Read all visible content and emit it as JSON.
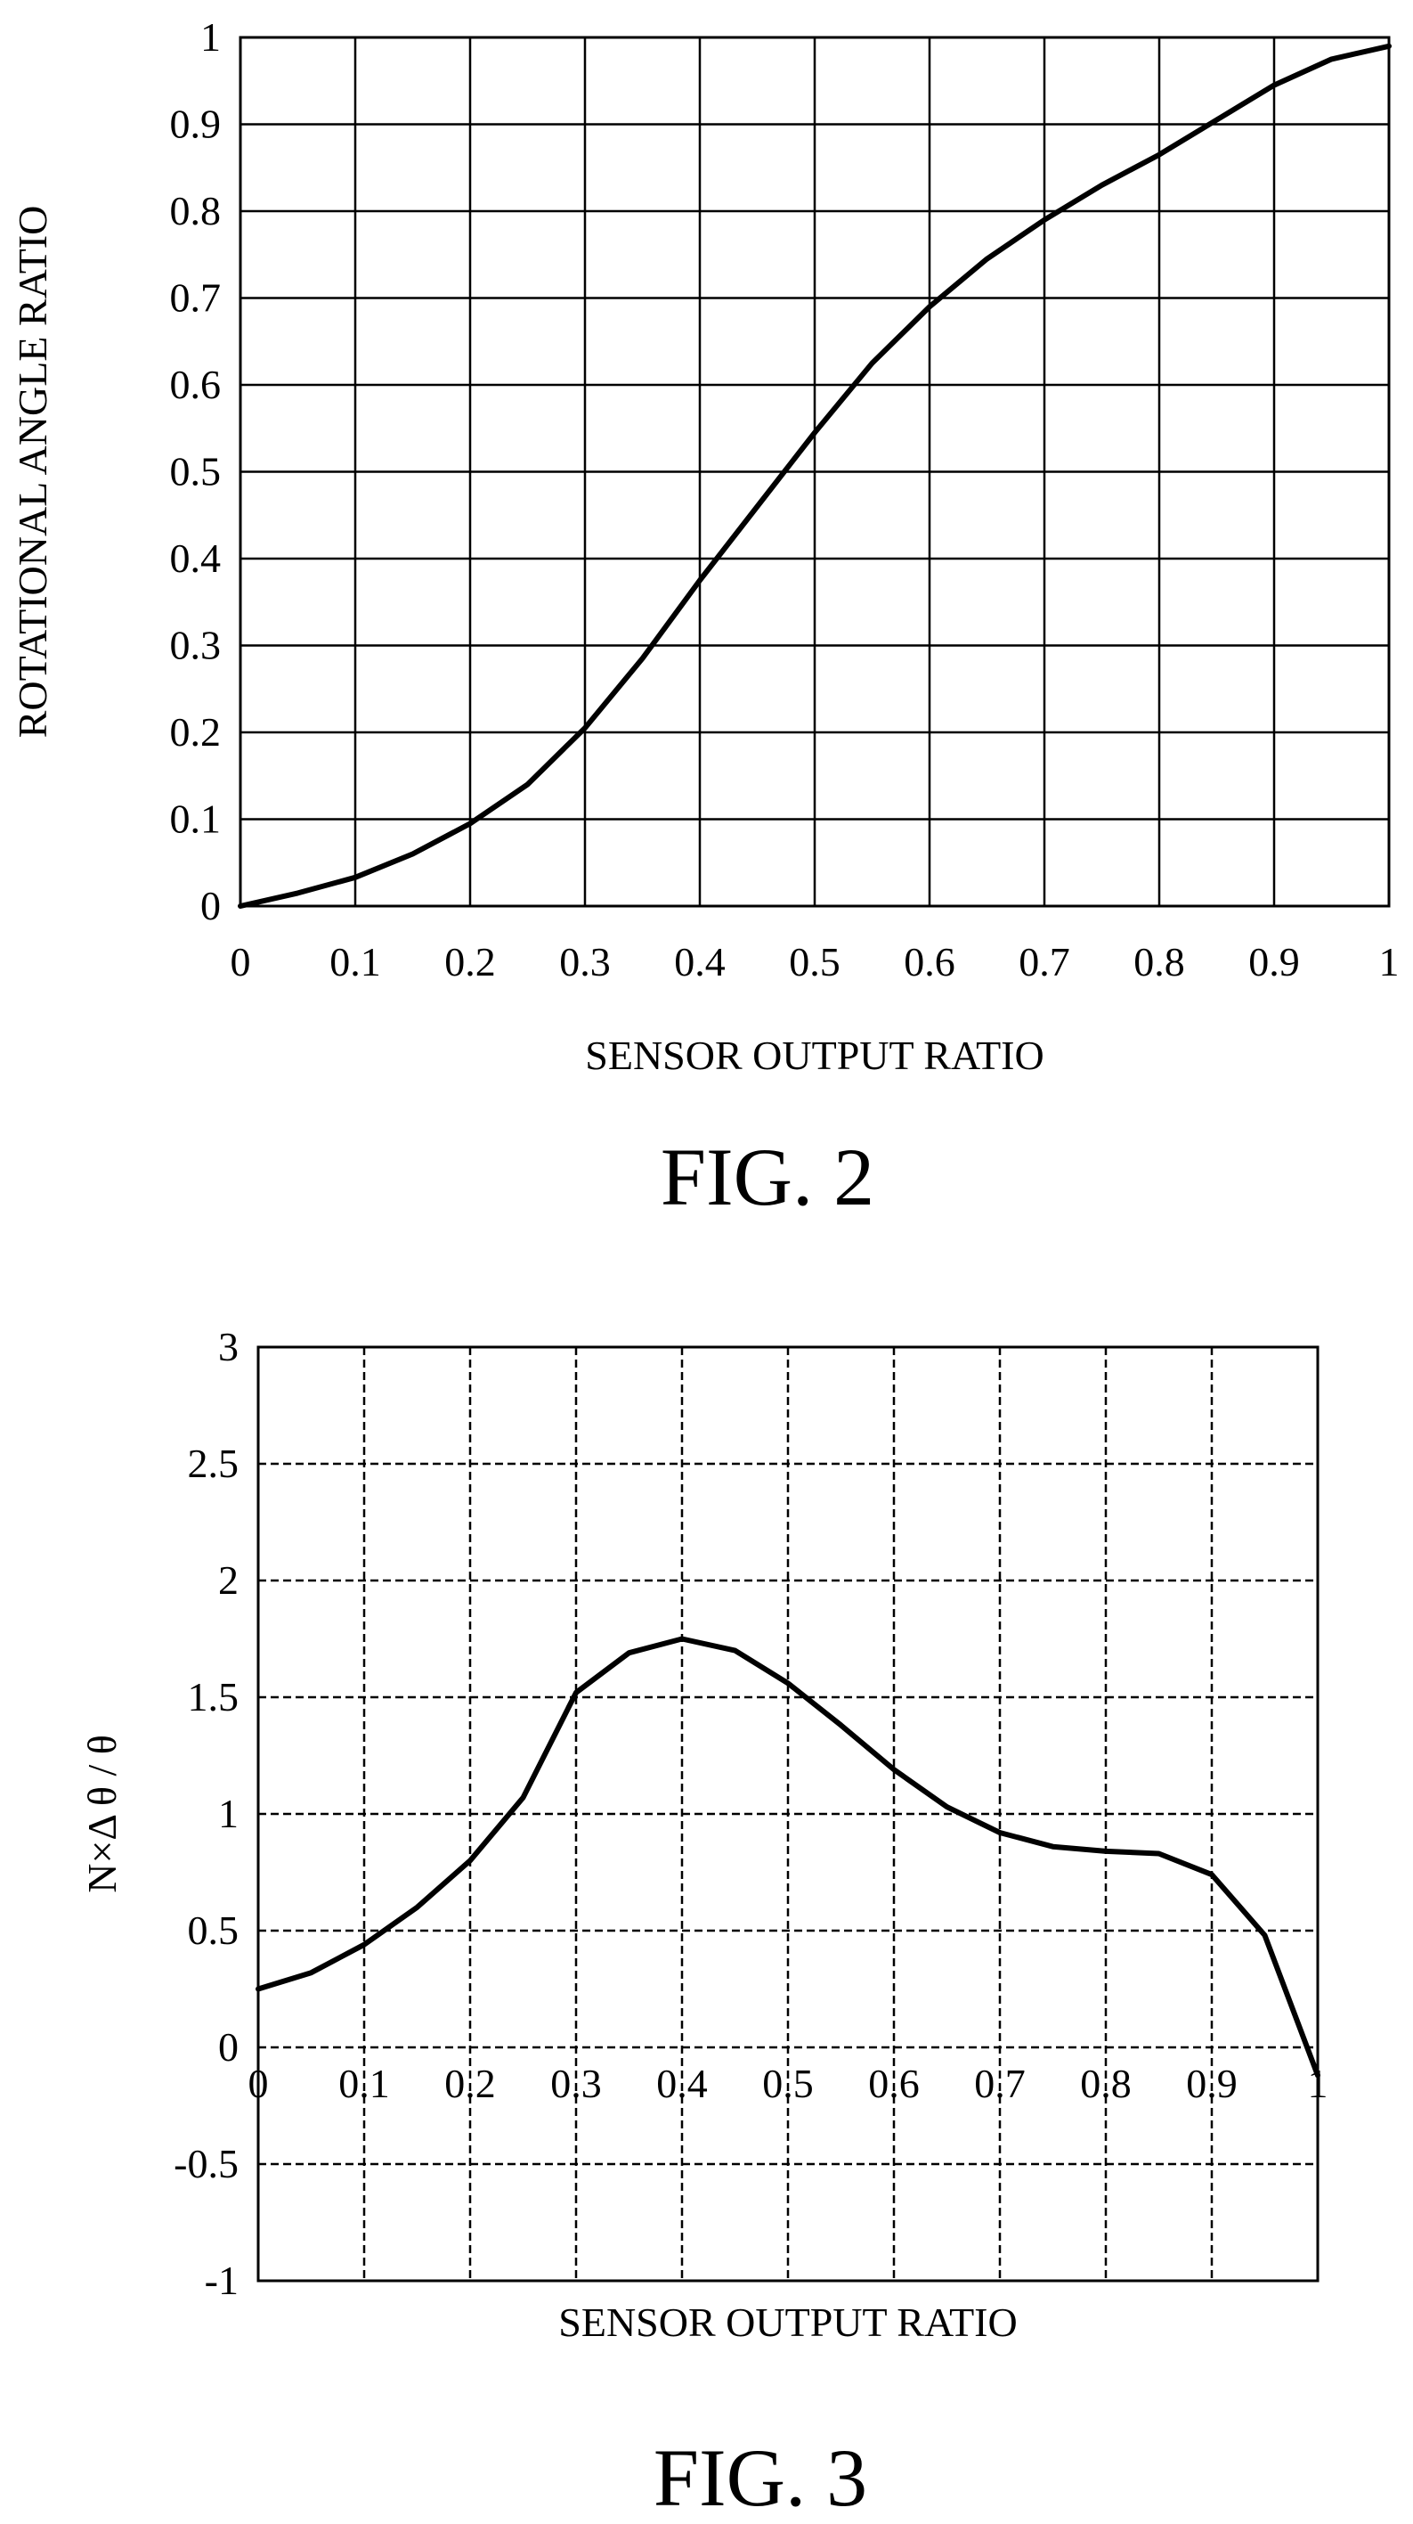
{
  "chart_data": [
    {
      "type": "line",
      "figure_label": "FIG. 2",
      "xlabel": "SENSOR OUTPUT RATIO",
      "ylabel": "ROTATIONAL ANGLE RATIO",
      "xlim": [
        0,
        1
      ],
      "ylim": [
        0,
        1
      ],
      "x_ticks": [
        "0",
        "0.1",
        "0.2",
        "0.3",
        "0.4",
        "0.5",
        "0.6",
        "0.7",
        "0.8",
        "0.9",
        "1"
      ],
      "y_ticks": [
        "0",
        "0.1",
        "0.2",
        "0.3",
        "0.4",
        "0.5",
        "0.6",
        "0.7",
        "0.8",
        "0.9",
        "1"
      ],
      "grid": "solid",
      "legend": "none",
      "series": [
        {
          "x": [
            0,
            0.05,
            0.1,
            0.15,
            0.2,
            0.25,
            0.3,
            0.35,
            0.4,
            0.45,
            0.5,
            0.55,
            0.6,
            0.65,
            0.7,
            0.75,
            0.8,
            0.85,
            0.9,
            0.95,
            1
          ],
          "y": [
            0,
            0.015,
            0.033,
            0.06,
            0.095,
            0.14,
            0.205,
            0.285,
            0.375,
            0.46,
            0.545,
            0.625,
            0.69,
            0.745,
            0.79,
            0.83,
            0.865,
            0.905,
            0.945,
            0.975,
            0.99
          ]
        }
      ]
    },
    {
      "type": "line",
      "figure_label": "FIG. 3",
      "xlabel": "SENSOR OUTPUT RATIO",
      "ylabel": "N×Δ θ / θ",
      "xlim": [
        0,
        1
      ],
      "ylim": [
        -1,
        3
      ],
      "x_ticks": [
        "0",
        "0.1",
        "0.2",
        "0.3",
        "0.4",
        "0.5",
        "0.6",
        "0.7",
        "0.8",
        "0.9",
        "1"
      ],
      "y_ticks": [
        "-1",
        "-0.5",
        "0",
        "0.5",
        "1",
        "1.5",
        "2",
        "2.5",
        "3"
      ],
      "grid": "dashed",
      "legend": "none",
      "series": [
        {
          "x": [
            0,
            0.05,
            0.1,
            0.15,
            0.2,
            0.25,
            0.3,
            0.35,
            0.4,
            0.45,
            0.5,
            0.55,
            0.6,
            0.65,
            0.7,
            0.75,
            0.8,
            0.85,
            0.9,
            0.95,
            1
          ],
          "y": [
            0.25,
            0.32,
            0.44,
            0.6,
            0.8,
            1.07,
            1.52,
            1.69,
            1.75,
            1.7,
            1.56,
            1.38,
            1.19,
            1.03,
            0.92,
            0.86,
            0.84,
            0.83,
            0.74,
            0.48,
            -0.12
          ]
        }
      ]
    }
  ]
}
